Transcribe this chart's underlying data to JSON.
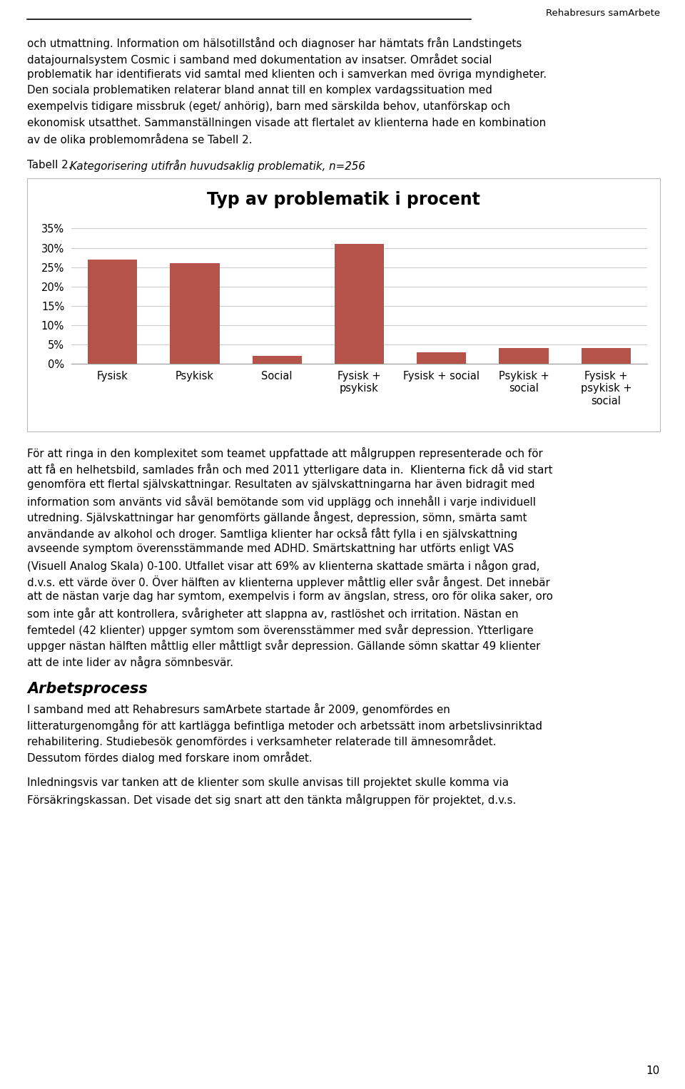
{
  "header_text": "Rehabresurs samArbete",
  "page_number": "10",
  "chart_title": "Typ av problematik i procent",
  "table_caption_bold": "Tabell 2. ",
  "table_caption_italic": "Kategorisering utifrån huvudsaklig problematik, n=256",
  "categories": [
    "Fysisk",
    "Psykisk",
    "Social",
    "Fysisk +\npsykisk",
    "Fysisk + social",
    "Psykisk +\nsocial",
    "Fysisk +\npsykisk +\nsocial"
  ],
  "values": [
    27,
    26,
    2,
    31,
    3,
    4,
    4
  ],
  "bar_color": "#b5524a",
  "yticks": [
    0,
    5,
    10,
    15,
    20,
    25,
    30,
    35
  ],
  "ytick_labels": [
    "0%",
    "5%",
    "10%",
    "15%",
    "20%",
    "25%",
    "30%",
    "35%"
  ],
  "ylim": [
    0,
    36
  ],
  "para1_lines": [
    "och utmattning. Information om hälsotillstånd och diagnoser har hämtats från Landstingets",
    "datajournalsystem Cosmic i samband med dokumentation av insatser. Området social",
    "problematik har identifierats vid samtal med klienten och i samverkan med övriga myndigheter.",
    "Den sociala problematiken relaterar bland annat till en komplex vardagssituation med",
    "exempelvis tidigare missbruk (eget/ anhörig), barn med särskilda behov, utanförskap och",
    "ekonomisk utsatthet. Sammanställningen visade att flertalet av klienterna hade en kombination",
    "av de olika problemområdena se Tabell 2."
  ],
  "para2_lines": [
    "För att ringa in den komplexitet som teamet uppfattade att målgruppen representerade och för",
    "att få en helhetsbild, samlades från och med 2011 ytterligare data in.  Klienterna fick då vid start",
    "genomföra ett flertal självskattningar. Resultaten av självskattningarna har även bidragit med",
    "information som använts vid såväl bemötande som vid upplägg och innehåll i varje individuell",
    "utredning. Självskattningar har genomförts gällande ångest, depression, sömn, smärta samt",
    "användande av alkohol och droger. Samtliga klienter har också fått fylla i en självskattning",
    "avseende symptom överensstämmande med ADHD. Smärtskattning har utförts enligt VAS",
    "(Visuell Analog Skala) 0-100. Utfallet visar att 69% av klienterna skattade smärta i någon grad,",
    "d.v.s. ett värde över 0. Över hälften av klienterna upplever måttlig eller svår ångest. Det innebär",
    "att de nästan varje dag har symtom, exempelvis i form av ängslan, stress, oro för olika saker, oro",
    "som inte går att kontrollera, svårigheter att slappna av, rastlöshet och irritation. Nästan en",
    "femtedel (42 klienter) uppger symtom som överensstämmer med svår depression. Ytterligare",
    "uppger nästan hälften måttlig eller måttligt svår depression. Gällande sömn skattar 49 klienter",
    "att de inte lider av några sömnbesvär."
  ],
  "section_heading": "Arbetsprocess",
  "para3_lines": [
    "I samband med att Rehabresurs samArbete startade år 2009, genomfördes en",
    "litteraturgenomgång för att kartlägga befintliga metoder och arbetssätt inom arbetslivsinriktad",
    "rehabilitering. Studiebesök genomfördes i verksamheter relaterade till ämnesområdet.",
    "Dessutom fördes dialog med forskare inom området."
  ],
  "para4_lines": [
    "Inledningsvis var tanken att de klienter som skulle anvisas till projektet skulle komma via",
    "Försäkringskassan. Det visade det sig snart att den tänkta målgruppen för projektet, d.v.s."
  ],
  "background_color": "#ffffff",
  "text_color": "#000000"
}
